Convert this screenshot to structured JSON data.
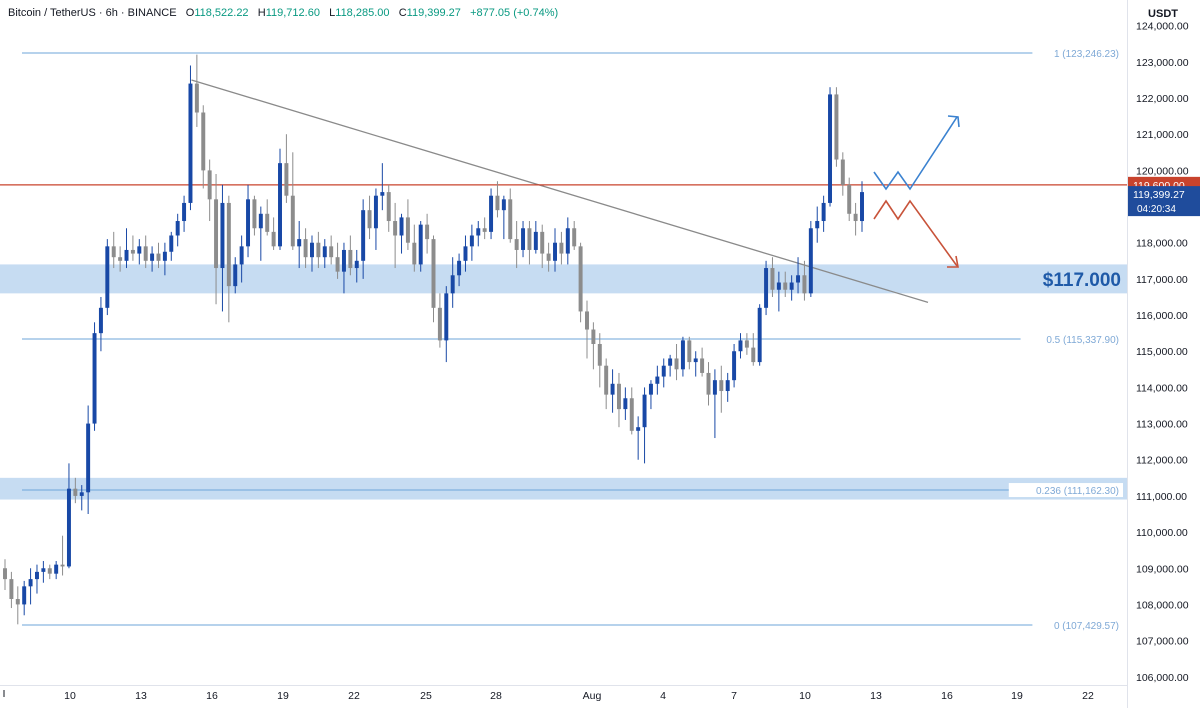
{
  "header": {
    "symbol": "Bitcoin / TetherUS",
    "interval": "6h",
    "exchange": "BINANCE",
    "open_label": "O",
    "open": "118,522.22",
    "high_label": "H",
    "high": "119,712.60",
    "low_label": "L",
    "low": "118,285.00",
    "close_label": "C",
    "close": "119,399.27",
    "change": "+877.05 (+0.74%)"
  },
  "currency": "USDT",
  "colors": {
    "bull": "#1848a6",
    "bear": "#8c8c8c",
    "fib_line": "#6ea6d9",
    "fib_text": "#7fa9d6",
    "zone": "#bcd6f0",
    "resistance": "#c8432d",
    "trendline": "#8a8a8a",
    "arrow_up": "#3b82d0",
    "arrow_down": "#c8533a",
    "price_tag": "#1f4c9c"
  },
  "chart_data": {
    "type": "candlestick",
    "y_axis": {
      "range": [
        105800,
        124600
      ],
      "ticks": [
        106000,
        107000,
        108000,
        109000,
        110000,
        111000,
        112000,
        113000,
        114000,
        115000,
        116000,
        117000,
        118000,
        119000,
        120000,
        121000,
        122000,
        123000,
        124000
      ],
      "tick_labels": [
        "106,000.00",
        "107,000.00",
        "108,000.00",
        "109,000.00",
        "110,000.00",
        "111,000.00",
        "112,000.00",
        "113,000.00",
        "114,000.00",
        "115,000.00",
        "116,000.00",
        "117,000.00",
        "118,000.00",
        "119,000.00",
        "120,000.00",
        "121,000.00",
        "122,000.00",
        "123,000.00",
        "124,000.00"
      ]
    },
    "x_axis": {
      "labels": [
        "10",
        "13",
        "16",
        "19",
        "22",
        "25",
        "28",
        "Aug",
        "4",
        "7",
        "10",
        "13",
        "16",
        "19",
        "22"
      ]
    },
    "fib_levels": [
      {
        "label": "1 (123,246.23)",
        "value": 123246.23
      },
      {
        "label": "0.5 (115,337.90)",
        "value": 115337.9
      },
      {
        "label": "0.236 (111,162.30)",
        "value": 111162.3
      },
      {
        "label": "0 (107,429.57)",
        "value": 107429.57
      }
    ],
    "zones": [
      {
        "low": 116600,
        "high": 117400,
        "label": "$117.000"
      },
      {
        "low": 110900,
        "high": 111500,
        "label": ""
      }
    ],
    "resistance": {
      "value": 119600,
      "label": "119,600.00"
    },
    "last_price": {
      "value": 119399.27,
      "label": "119,399.27",
      "countdown": "04:20:34"
    },
    "trendline": {
      "from": 122500,
      "to": 116350
    },
    "candles": [
      {
        "o": 109000,
        "h": 109250,
        "l": 108400,
        "c": 108700
      },
      {
        "o": 108700,
        "h": 108900,
        "l": 107900,
        "c": 108150
      },
      {
        "o": 108150,
        "h": 108500,
        "l": 107450,
        "c": 108000
      },
      {
        "o": 108000,
        "h": 108650,
        "l": 107700,
        "c": 108500
      },
      {
        "o": 108500,
        "h": 109000,
        "l": 108000,
        "c": 108700
      },
      {
        "o": 108700,
        "h": 109100,
        "l": 108300,
        "c": 108900
      },
      {
        "o": 108900,
        "h": 109200,
        "l": 108600,
        "c": 109000
      },
      {
        "o": 109000,
        "h": 109100,
        "l": 108700,
        "c": 108850
      },
      {
        "o": 108850,
        "h": 109200,
        "l": 108700,
        "c": 109100
      },
      {
        "o": 109100,
        "h": 109900,
        "l": 108800,
        "c": 109050
      },
      {
        "o": 109050,
        "h": 111900,
        "l": 109000,
        "c": 111200
      },
      {
        "o": 111200,
        "h": 111500,
        "l": 110800,
        "c": 111000
      },
      {
        "o": 111000,
        "h": 111300,
        "l": 110600,
        "c": 111100
      },
      {
        "o": 111100,
        "h": 113500,
        "l": 110500,
        "c": 113000
      },
      {
        "o": 113000,
        "h": 115800,
        "l": 112800,
        "c": 115500
      },
      {
        "o": 115500,
        "h": 116500,
        "l": 115000,
        "c": 116200
      },
      {
        "o": 116200,
        "h": 118100,
        "l": 116000,
        "c": 117900
      },
      {
        "o": 117900,
        "h": 118300,
        "l": 117300,
        "c": 117600
      },
      {
        "o": 117600,
        "h": 117900,
        "l": 117200,
        "c": 117500
      },
      {
        "o": 117500,
        "h": 118400,
        "l": 117300,
        "c": 117800
      },
      {
        "o": 117800,
        "h": 118200,
        "l": 117500,
        "c": 117700
      },
      {
        "o": 117700,
        "h": 118100,
        "l": 117400,
        "c": 117900
      },
      {
        "o": 117900,
        "h": 118200,
        "l": 117300,
        "c": 117500
      },
      {
        "o": 117500,
        "h": 117900,
        "l": 117200,
        "c": 117700
      },
      {
        "o": 117700,
        "h": 118000,
        "l": 117300,
        "c": 117500
      },
      {
        "o": 117500,
        "h": 118000,
        "l": 117100,
        "c": 117750
      },
      {
        "o": 117750,
        "h": 118300,
        "l": 117500,
        "c": 118200
      },
      {
        "o": 118200,
        "h": 118800,
        "l": 117900,
        "c": 118600
      },
      {
        "o": 118600,
        "h": 119300,
        "l": 118300,
        "c": 119100
      },
      {
        "o": 119100,
        "h": 122900,
        "l": 118900,
        "c": 122400
      },
      {
        "o": 122400,
        "h": 123200,
        "l": 121200,
        "c": 121600
      },
      {
        "o": 121600,
        "h": 121800,
        "l": 119500,
        "c": 120000
      },
      {
        "o": 120000,
        "h": 120300,
        "l": 118600,
        "c": 119200
      },
      {
        "o": 119200,
        "h": 119900,
        "l": 116300,
        "c": 117300
      },
      {
        "o": 117300,
        "h": 119600,
        "l": 116100,
        "c": 119100
      },
      {
        "o": 119100,
        "h": 119300,
        "l": 115800,
        "c": 116800
      },
      {
        "o": 116800,
        "h": 117600,
        "l": 116600,
        "c": 117400
      },
      {
        "o": 117400,
        "h": 118200,
        "l": 116900,
        "c": 117900
      },
      {
        "o": 117900,
        "h": 119600,
        "l": 117600,
        "c": 119200
      },
      {
        "o": 119200,
        "h": 119300,
        "l": 118200,
        "c": 118400
      },
      {
        "o": 118400,
        "h": 119000,
        "l": 117500,
        "c": 118800
      },
      {
        "o": 118800,
        "h": 119200,
        "l": 118200,
        "c": 118300
      },
      {
        "o": 118300,
        "h": 118700,
        "l": 117800,
        "c": 117900
      },
      {
        "o": 117900,
        "h": 120600,
        "l": 117800,
        "c": 120200
      },
      {
        "o": 120200,
        "h": 121000,
        "l": 119100,
        "c": 119300
      },
      {
        "o": 119300,
        "h": 120500,
        "l": 117800,
        "c": 117900
      },
      {
        "o": 117900,
        "h": 118600,
        "l": 117300,
        "c": 118100
      },
      {
        "o": 118100,
        "h": 118400,
        "l": 117300,
        "c": 117600
      },
      {
        "o": 117600,
        "h": 118200,
        "l": 117200,
        "c": 118000
      },
      {
        "o": 118000,
        "h": 118300,
        "l": 117300,
        "c": 117600
      },
      {
        "o": 117600,
        "h": 118100,
        "l": 117300,
        "c": 117900
      },
      {
        "o": 117900,
        "h": 118200,
        "l": 117400,
        "c": 117600
      },
      {
        "o": 117600,
        "h": 118000,
        "l": 117000,
        "c": 117200
      },
      {
        "o": 117200,
        "h": 118000,
        "l": 116600,
        "c": 117800
      },
      {
        "o": 117800,
        "h": 118200,
        "l": 117100,
        "c": 117300
      },
      {
        "o": 117300,
        "h": 117800,
        "l": 116900,
        "c": 117500
      },
      {
        "o": 117500,
        "h": 119200,
        "l": 117000,
        "c": 118900
      },
      {
        "o": 118900,
        "h": 119300,
        "l": 118100,
        "c": 118400
      },
      {
        "o": 118400,
        "h": 119500,
        "l": 117800,
        "c": 119300
      },
      {
        "o": 119300,
        "h": 120200,
        "l": 118900,
        "c": 119400
      },
      {
        "o": 119400,
        "h": 119600,
        "l": 118300,
        "c": 118600
      },
      {
        "o": 118600,
        "h": 119100,
        "l": 117300,
        "c": 118200
      },
      {
        "o": 118200,
        "h": 118800,
        "l": 117700,
        "c": 118700
      },
      {
        "o": 118700,
        "h": 119200,
        "l": 117800,
        "c": 118000
      },
      {
        "o": 118000,
        "h": 118500,
        "l": 117200,
        "c": 117400
      },
      {
        "o": 117400,
        "h": 118600,
        "l": 117200,
        "c": 118500
      },
      {
        "o": 118500,
        "h": 118800,
        "l": 117700,
        "c": 118100
      },
      {
        "o": 118100,
        "h": 118200,
        "l": 115800,
        "c": 116200
      },
      {
        "o": 116200,
        "h": 116600,
        "l": 115100,
        "c": 115300
      },
      {
        "o": 115300,
        "h": 116800,
        "l": 114700,
        "c": 116600
      },
      {
        "o": 116600,
        "h": 117600,
        "l": 116200,
        "c": 117100
      },
      {
        "o": 117100,
        "h": 117700,
        "l": 116800,
        "c": 117500
      },
      {
        "o": 117500,
        "h": 118200,
        "l": 117200,
        "c": 117900
      },
      {
        "o": 117900,
        "h": 118500,
        "l": 117500,
        "c": 118200
      },
      {
        "o": 118200,
        "h": 118600,
        "l": 117900,
        "c": 118400
      },
      {
        "o": 118400,
        "h": 118700,
        "l": 118100,
        "c": 118300
      },
      {
        "o": 118300,
        "h": 119500,
        "l": 118100,
        "c": 119300
      },
      {
        "o": 119300,
        "h": 119700,
        "l": 118700,
        "c": 118900
      },
      {
        "o": 118900,
        "h": 119300,
        "l": 118100,
        "c": 119200
      },
      {
        "o": 119200,
        "h": 119500,
        "l": 118000,
        "c": 118100
      },
      {
        "o": 118100,
        "h": 118600,
        "l": 117300,
        "c": 117800
      },
      {
        "o": 117800,
        "h": 118600,
        "l": 117600,
        "c": 118400
      },
      {
        "o": 118400,
        "h": 118600,
        "l": 117400,
        "c": 117800
      },
      {
        "o": 117800,
        "h": 118600,
        "l": 117700,
        "c": 118300
      },
      {
        "o": 118300,
        "h": 118500,
        "l": 117300,
        "c": 117700
      },
      {
        "o": 117700,
        "h": 118000,
        "l": 117200,
        "c": 117500
      },
      {
        "o": 117500,
        "h": 118400,
        "l": 117200,
        "c": 118000
      },
      {
        "o": 118000,
        "h": 118300,
        "l": 117400,
        "c": 117700
      },
      {
        "o": 117700,
        "h": 118700,
        "l": 117400,
        "c": 118400
      },
      {
        "o": 118400,
        "h": 118600,
        "l": 117800,
        "c": 117900
      },
      {
        "o": 117900,
        "h": 118000,
        "l": 115800,
        "c": 116100
      },
      {
        "o": 116100,
        "h": 116400,
        "l": 114800,
        "c": 115600
      },
      {
        "o": 115600,
        "h": 115800,
        "l": 114500,
        "c": 115200
      },
      {
        "o": 115200,
        "h": 115500,
        "l": 114000,
        "c": 114600
      },
      {
        "o": 114600,
        "h": 114800,
        "l": 113400,
        "c": 113800
      },
      {
        "o": 113800,
        "h": 114500,
        "l": 113300,
        "c": 114100
      },
      {
        "o": 114100,
        "h": 114400,
        "l": 112900,
        "c": 113400
      },
      {
        "o": 113400,
        "h": 114000,
        "l": 113100,
        "c": 113700
      },
      {
        "o": 113700,
        "h": 114000,
        "l": 112700,
        "c": 112800
      },
      {
        "o": 112800,
        "h": 113200,
        "l": 112000,
        "c": 112900
      },
      {
        "o": 112900,
        "h": 114000,
        "l": 111900,
        "c": 113800
      },
      {
        "o": 113800,
        "h": 114200,
        "l": 113400,
        "c": 114100
      },
      {
        "o": 114100,
        "h": 114600,
        "l": 113800,
        "c": 114300
      },
      {
        "o": 114300,
        "h": 114800,
        "l": 114000,
        "c": 114600
      },
      {
        "o": 114600,
        "h": 114900,
        "l": 114300,
        "c": 114800
      },
      {
        "o": 114800,
        "h": 115200,
        "l": 114200,
        "c": 114500
      },
      {
        "o": 114500,
        "h": 115400,
        "l": 114300,
        "c": 115300
      },
      {
        "o": 115300,
        "h": 115400,
        "l": 114500,
        "c": 114700
      },
      {
        "o": 114700,
        "h": 115000,
        "l": 114300,
        "c": 114800
      },
      {
        "o": 114800,
        "h": 115100,
        "l": 114300,
        "c": 114400
      },
      {
        "o": 114400,
        "h": 114700,
        "l": 113500,
        "c": 113800
      },
      {
        "o": 113800,
        "h": 114500,
        "l": 112600,
        "c": 114200
      },
      {
        "o": 114200,
        "h": 114600,
        "l": 113300,
        "c": 113900
      },
      {
        "o": 113900,
        "h": 114400,
        "l": 113600,
        "c": 114200
      },
      {
        "o": 114200,
        "h": 115200,
        "l": 114000,
        "c": 115000
      },
      {
        "o": 115000,
        "h": 115500,
        "l": 114800,
        "c": 115300
      },
      {
        "o": 115300,
        "h": 115500,
        "l": 114900,
        "c": 115100
      },
      {
        "o": 115100,
        "h": 115500,
        "l": 114600,
        "c": 114700
      },
      {
        "o": 114700,
        "h": 116300,
        "l": 114600,
        "c": 116200
      },
      {
        "o": 116200,
        "h": 117500,
        "l": 116000,
        "c": 117300
      },
      {
        "o": 117300,
        "h": 117600,
        "l": 116500,
        "c": 116700
      },
      {
        "o": 116700,
        "h": 117200,
        "l": 116100,
        "c": 116900
      },
      {
        "o": 116900,
        "h": 117200,
        "l": 116500,
        "c": 116700
      },
      {
        "o": 116700,
        "h": 117100,
        "l": 116400,
        "c": 116900
      },
      {
        "o": 116900,
        "h": 117600,
        "l": 116600,
        "c": 117100
      },
      {
        "o": 117100,
        "h": 117500,
        "l": 116400,
        "c": 116600
      },
      {
        "o": 116600,
        "h": 118600,
        "l": 116500,
        "c": 118400
      },
      {
        "o": 118400,
        "h": 119000,
        "l": 118000,
        "c": 118600
      },
      {
        "o": 118600,
        "h": 119300,
        "l": 118300,
        "c": 119100
      },
      {
        "o": 119100,
        "h": 122300,
        "l": 119000,
        "c": 122100
      },
      {
        "o": 122100,
        "h": 122300,
        "l": 120100,
        "c": 120300
      },
      {
        "o": 120300,
        "h": 120500,
        "l": 119300,
        "c": 119600
      },
      {
        "o": 119600,
        "h": 119800,
        "l": 118600,
        "c": 118800
      },
      {
        "o": 118800,
        "h": 119100,
        "l": 118200,
        "c": 118600
      },
      {
        "o": 118600,
        "h": 119700,
        "l": 118300,
        "c": 119400
      }
    ]
  }
}
